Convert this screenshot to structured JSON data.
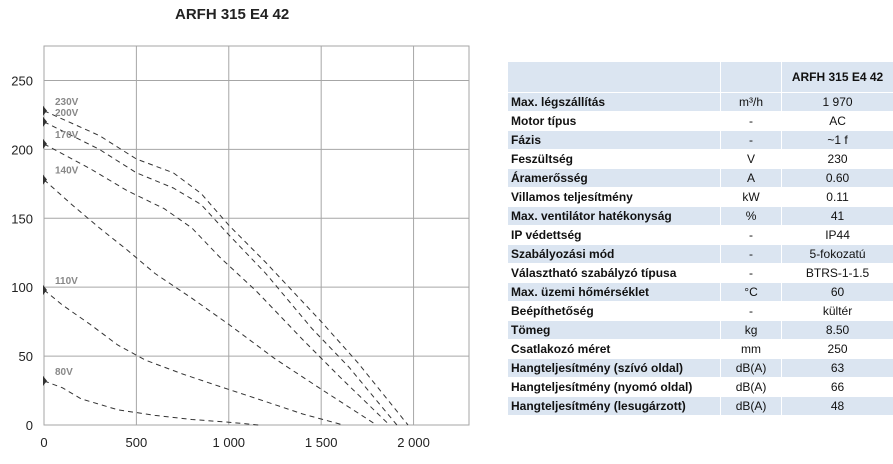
{
  "chart_data": {
    "type": "line",
    "title": "ARFH 315 E4 42",
    "xlabel": "",
    "ylabel": "",
    "xlim": [
      0,
      2300
    ],
    "ylim": [
      0,
      275
    ],
    "xticks": [
      0,
      500,
      1000,
      1500,
      2000
    ],
    "xtick_labels": [
      "0",
      "500",
      "1 000",
      "1 500",
      "2 000"
    ],
    "yticks": [
      0,
      50,
      100,
      150,
      200,
      250
    ],
    "ytick_labels": [
      "0",
      "50",
      "100",
      "150",
      "200",
      "250"
    ],
    "grid": true,
    "line_style": "dashed",
    "series": [
      {
        "name": "230V",
        "x": [
          0,
          300,
          500,
          700,
          850,
          1000,
          1200,
          1500,
          1700,
          1970
        ],
        "y": [
          228,
          210,
          193,
          183,
          168,
          145,
          118,
          75,
          45,
          0
        ]
      },
      {
        "name": "200V",
        "x": [
          0,
          300,
          500,
          700,
          850,
          1000,
          1200,
          1450,
          1650,
          1910
        ],
        "y": [
          220,
          200,
          183,
          172,
          160,
          138,
          110,
          70,
          42,
          0
        ]
      },
      {
        "name": "170V",
        "x": [
          0,
          250,
          450,
          650,
          800,
          950,
          1150,
          1400,
          1600,
          1870
        ],
        "y": [
          204,
          186,
          170,
          157,
          143,
          122,
          97,
          62,
          35,
          0
        ]
      },
      {
        "name": "140V",
        "x": [
          0,
          150,
          300,
          450,
          600,
          800,
          1000,
          1250,
          1500,
          1800
        ],
        "y": [
          178,
          160,
          143,
          127,
          110,
          92,
          73,
          48,
          26,
          0
        ]
      },
      {
        "name": "110V",
        "x": [
          0,
          100,
          250,
          400,
          550,
          750,
          950,
          1200,
          1400,
          1620
        ],
        "y": [
          98,
          87,
          73,
          58,
          47,
          37,
          28,
          17,
          8,
          0
        ]
      },
      {
        "name": "80V",
        "x": [
          0,
          100,
          200,
          300,
          400,
          500,
          600,
          800,
          1000,
          1160
        ],
        "y": [
          32,
          27,
          19,
          15,
          11,
          9,
          7,
          4,
          2,
          0
        ]
      }
    ]
  },
  "specs": {
    "header": "ARFH 315 E4 42",
    "rows": [
      {
        "label": "Max. légszállítás",
        "unit": "m³/h",
        "value": "1 970"
      },
      {
        "label": "Motor típus",
        "unit": "-",
        "value": "AC"
      },
      {
        "label": "Fázis",
        "unit": "-",
        "value": "~1 f"
      },
      {
        "label": "Feszültség",
        "unit": "V",
        "value": "230"
      },
      {
        "label": "Áramerősség",
        "unit": "A",
        "value": "0.60"
      },
      {
        "label": "Villamos teljesítmény",
        "unit": "kW",
        "value": "0.11"
      },
      {
        "label": "Max. ventilátor hatékonyság",
        "unit": "%",
        "value": "41"
      },
      {
        "label": "IP védettség",
        "unit": "-",
        "value": "IP44"
      },
      {
        "label": "Szabályozási mód",
        "unit": "-",
        "value": "5-fokozatú"
      },
      {
        "label": "Választható szabályzó típusa",
        "unit": "-",
        "value": "BTRS-1-1.5"
      },
      {
        "label": "Max. üzemi hőmérséklet",
        "unit": "°C",
        "value": "60"
      },
      {
        "label": "Beépíthetőség",
        "unit": "-",
        "value": "kültér"
      },
      {
        "label": "Tömeg",
        "unit": "kg",
        "value": "8.50"
      },
      {
        "label": "Csatlakozó méret",
        "unit": "mm",
        "value": "250"
      },
      {
        "label": "Hangteljesítmény (szívó oldal)",
        "unit": "dB(A)",
        "value": "63"
      },
      {
        "label": "Hangteljesítmény (nyomó oldal)",
        "unit": "dB(A)",
        "value": "66"
      },
      {
        "label": "Hangteljesítmény (lesugárzott)",
        "unit": "dB(A)",
        "value": "48"
      }
    ]
  },
  "colors": {
    "grid": "#a6a6a6",
    "curve": "#333333",
    "marker": "#333333",
    "curve_label": "#888888",
    "table_band": "#dbe5f1"
  }
}
